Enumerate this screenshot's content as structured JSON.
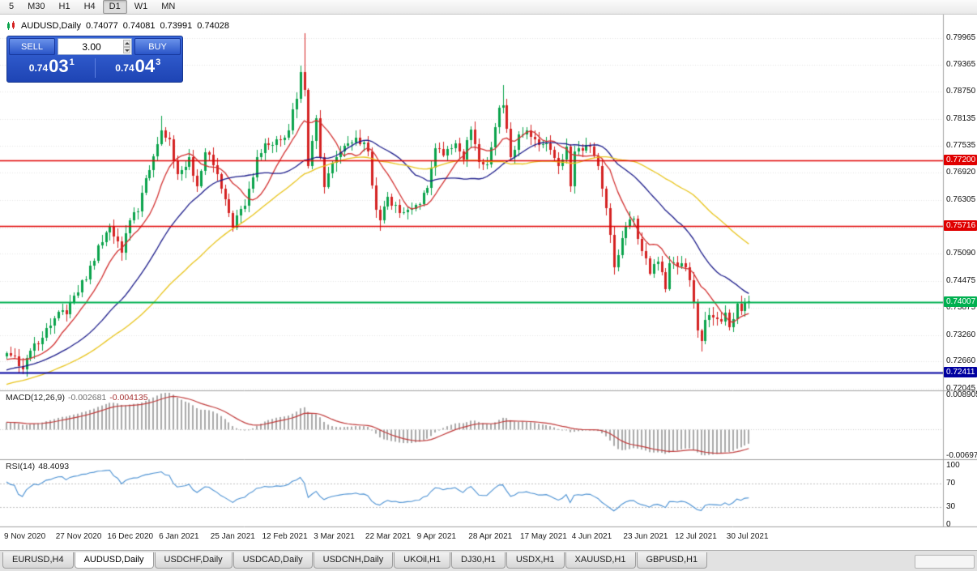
{
  "toolbar": {
    "periods": [
      {
        "label": "5",
        "active": false
      },
      {
        "label": "M30",
        "active": false
      },
      {
        "label": "H1",
        "active": false
      },
      {
        "label": "H4",
        "active": false
      },
      {
        "label": "D1",
        "active": true
      },
      {
        "label": "W1",
        "active": false
      },
      {
        "label": "MN",
        "active": false
      }
    ]
  },
  "chart": {
    "title": "AUDUSD,Daily",
    "ohlc": {
      "open": "0.74077",
      "high": "0.74081",
      "low": "0.73991",
      "close": "0.74028"
    },
    "trade_panel": {
      "sell_label": "SELL",
      "buy_label": "BUY",
      "lot_size": "3.00",
      "sell_price_head": "0.74",
      "sell_price_big": "03",
      "sell_price_sup": "1",
      "buy_price_head": "0.74",
      "buy_price_big": "04",
      "buy_price_sup": "3"
    }
  },
  "tabs": {
    "items": [
      {
        "label": "EURUSD,H4",
        "active": false
      },
      {
        "label": "AUDUSD,Daily",
        "active": true
      },
      {
        "label": "USDCHF,Daily",
        "active": false
      },
      {
        "label": "USDCAD,Daily",
        "active": false
      },
      {
        "label": "USDCNH,Daily",
        "active": false
      },
      {
        "label": "UKOil,H1",
        "active": false
      },
      {
        "label": "DJ30,H1",
        "active": false
      },
      {
        "label": "USDX,H1",
        "active": false
      },
      {
        "label": "XAUUSD,H1",
        "active": false
      },
      {
        "label": "GBPUSD,H1",
        "active": false
      }
    ]
  },
  "chart_data": {
    "type": "candlestick",
    "symbol": "AUDUSD",
    "timeframe": "Daily",
    "bars": 188,
    "preroll_bars": 60,
    "preroll_price": 0.712,
    "up_color": "#0aa34b",
    "down_color": "#d42222",
    "price_axis_ticks": [
      "0.79965",
      "0.79365",
      "0.78750",
      "0.78135",
      "0.77535",
      "0.76920",
      "0.76305",
      "0.75690",
      "0.75090",
      "0.74475",
      "0.73875",
      "0.73260",
      "0.72660",
      "0.72045"
    ],
    "hlines": [
      {
        "value": 0.772,
        "label": "0.77200",
        "color": "#e00000",
        "width": 1.4
      },
      {
        "value": 0.75716,
        "label": "0.75716",
        "color": "#e00000",
        "width": 1.4
      },
      {
        "value": 0.74007,
        "label": "0.74007",
        "color": "#00b050",
        "width": 2.2
      },
      {
        "value": 0.72411,
        "label": "0.72411",
        "color": "#0000a0",
        "width": 2
      }
    ],
    "x_labels": [
      [
        0,
        "9 Nov 2020"
      ],
      [
        13,
        "27 Nov 2020"
      ],
      [
        26,
        "16 Dec 2020"
      ],
      [
        39,
        "6 Jan 2021"
      ],
      [
        52,
        "25 Jan 2021"
      ],
      [
        65,
        "12 Feb 2021"
      ],
      [
        78,
        "3 Mar 2021"
      ],
      [
        91,
        "22 Mar 2021"
      ],
      [
        104,
        "9 Apr 2021"
      ],
      [
        117,
        "28 Apr 2021"
      ],
      [
        130,
        "17 May 2021"
      ],
      [
        143,
        "4 Jun 2021"
      ],
      [
        156,
        "23 Jun 2021"
      ],
      [
        169,
        "12 Jul 2021"
      ],
      [
        182,
        "30 Jul 2021"
      ]
    ],
    "price_anchors": [
      [
        0,
        0.7285
      ],
      [
        2,
        0.7278
      ],
      [
        4,
        0.7248
      ],
      [
        6,
        0.729
      ],
      [
        9,
        0.732
      ],
      [
        13,
        0.7378
      ],
      [
        15,
        0.7372
      ],
      [
        17,
        0.7415
      ],
      [
        20,
        0.7452
      ],
      [
        23,
        0.7528
      ],
      [
        26,
        0.757
      ],
      [
        29,
        0.7512
      ],
      [
        31,
        0.7585
      ],
      [
        33,
        0.7605
      ],
      [
        35,
        0.768
      ],
      [
        37,
        0.773
      ],
      [
        39,
        0.7788
      ],
      [
        41,
        0.7768
      ],
      [
        43,
        0.769
      ],
      [
        46,
        0.7728
      ],
      [
        48,
        0.7662
      ],
      [
        50,
        0.7738
      ],
      [
        52,
        0.771
      ],
      [
        55,
        0.7632
      ],
      [
        57,
        0.7568
      ],
      [
        60,
        0.7618
      ],
      [
        63,
        0.7728
      ],
      [
        65,
        0.7758
      ],
      [
        68,
        0.7768
      ],
      [
        71,
        0.7788
      ],
      [
        73,
        0.786
      ],
      [
        74,
        0.792
      ],
      [
        75,
        0.788
      ],
      [
        76,
        0.7708
      ],
      [
        78,
        0.7815
      ],
      [
        80,
        0.766
      ],
      [
        83,
        0.7728
      ],
      [
        86,
        0.7758
      ],
      [
        88,
        0.7772
      ],
      [
        91,
        0.774
      ],
      [
        93,
        0.7608
      ],
      [
        94,
        0.7585
      ],
      [
        96,
        0.7638
      ],
      [
        99,
        0.7602
      ],
      [
        102,
        0.761
      ],
      [
        104,
        0.7622
      ],
      [
        106,
        0.7658
      ],
      [
        108,
        0.7748
      ],
      [
        110,
        0.7732
      ],
      [
        113,
        0.7758
      ],
      [
        115,
        0.7722
      ],
      [
        117,
        0.779
      ],
      [
        119,
        0.7716
      ],
      [
        121,
        0.7712
      ],
      [
        124,
        0.784
      ],
      [
        125,
        0.7845
      ],
      [
        127,
        0.7728
      ],
      [
        129,
        0.7778
      ],
      [
        131,
        0.7788
      ],
      [
        133,
        0.7768
      ],
      [
        135,
        0.7756
      ],
      [
        137,
        0.7744
      ],
      [
        139,
        0.7708
      ],
      [
        141,
        0.7752
      ],
      [
        142,
        0.7662
      ],
      [
        143,
        0.774
      ],
      [
        145,
        0.7742
      ],
      [
        147,
        0.7752
      ],
      [
        149,
        0.7708
      ],
      [
        151,
        0.7612
      ],
      [
        152,
        0.7552
      ],
      [
        153,
        0.7478
      ],
      [
        155,
        0.7545
      ],
      [
        156,
        0.7572
      ],
      [
        158,
        0.7588
      ],
      [
        160,
        0.7515
      ],
      [
        162,
        0.7465
      ],
      [
        164,
        0.7492
      ],
      [
        166,
        0.743
      ],
      [
        167,
        0.7488
      ],
      [
        169,
        0.748
      ],
      [
        171,
        0.7478
      ],
      [
        173,
        0.74
      ],
      [
        174,
        0.7337
      ],
      [
        175,
        0.7312
      ],
      [
        176,
        0.736
      ],
      [
        178,
        0.7365
      ],
      [
        180,
        0.7356
      ],
      [
        181,
        0.7376
      ],
      [
        182,
        0.7344
      ],
      [
        183,
        0.7362
      ],
      [
        184,
        0.7396
      ],
      [
        185,
        0.738
      ],
      [
        186,
        0.74
      ],
      [
        187,
        0.74028
      ]
    ],
    "wick_highs": [
      [
        39,
        0.782
      ],
      [
        75,
        0.8007
      ],
      [
        125,
        0.7891
      ]
    ],
    "wick_lows": [
      [
        4,
        0.7238
      ],
      [
        57,
        0.756
      ],
      [
        94,
        0.7562
      ],
      [
        175,
        0.7289
      ]
    ],
    "moving_averages": [
      {
        "period": 10,
        "color": "#d23030"
      },
      {
        "period": 28,
        "color": "#1c1c8a"
      },
      {
        "period": 52,
        "color": "#e8c41c"
      }
    ],
    "macd": {
      "label": "MACD(12,26,9)",
      "value": "-0.002681",
      "signal_value": "-0.004135",
      "axis_max": "0.008905",
      "axis_min": "-0.006975",
      "hist_color": "#a9a9a9",
      "signal_color": "#c03a3a"
    },
    "rsi": {
      "label": "RSI(14)",
      "value": "48.4093",
      "levels": [
        "100",
        "70",
        "30",
        "0"
      ],
      "color": "#4a90d2"
    }
  }
}
